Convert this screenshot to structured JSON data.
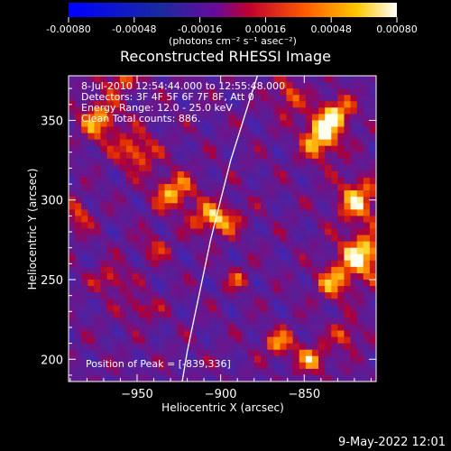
{
  "chart_data": {
    "type": "heatmap",
    "title": "Reconstructed RHESSI Image",
    "xlabel": "Heliocentric X (arcsec)",
    "ylabel": "Heliocentric Y (arcsec)",
    "x_ticks": [
      -950,
      -900,
      -850
    ],
    "y_ticks": [
      200,
      250,
      300,
      350
    ],
    "xlim": [
      -991,
      -807
    ],
    "ylim": [
      186,
      378
    ],
    "colorbar": {
      "ticks": [
        "-0.00080",
        "-0.00048",
        "-0.00016",
        "0.00016",
        "0.00048",
        "0.00080"
      ],
      "range": [
        -0.0008,
        0.0008
      ],
      "unit_label": "(photons cm⁻² s⁻¹ asec⁻²)"
    },
    "annotations": {
      "time": "8-Jul-2010 12:54:44.000 to 12:55:48.000",
      "detectors": "Detectors: 3F 4F 5F 6F 7F 8F, Att 0",
      "energy": "Energy Range: 12.0 - 25.0 keV",
      "clean": "Clean     Total counts: 886.",
      "peak": "Position of Peak = [-839,336]"
    },
    "peak_position": [
      -839,
      336
    ],
    "blobs": [
      {
        "x": -840,
        "y": 340,
        "sx": 8,
        "sy": 10,
        "a": 1.0
      },
      {
        "x": -830,
        "y": 355,
        "sx": 7,
        "sy": 7,
        "a": 0.75
      },
      {
        "x": -860,
        "y": 365,
        "sx": 6,
        "sy": 8,
        "a": 0.6
      },
      {
        "x": -815,
        "y": 265,
        "sx": 10,
        "sy": 10,
        "a": 0.95
      },
      {
        "x": -818,
        "y": 300,
        "sx": 9,
        "sy": 10,
        "a": 0.8
      },
      {
        "x": -832,
        "y": 248,
        "sx": 8,
        "sy": 8,
        "a": 0.65
      },
      {
        "x": -903,
        "y": 288,
        "sx": 10,
        "sy": 7,
        "a": 0.85
      },
      {
        "x": -928,
        "y": 305,
        "sx": 9,
        "sy": 8,
        "a": 0.75
      },
      {
        "x": -950,
        "y": 330,
        "sx": 8,
        "sy": 8,
        "a": 0.7
      },
      {
        "x": -972,
        "y": 350,
        "sx": 9,
        "sy": 10,
        "a": 0.7
      },
      {
        "x": -940,
        "y": 270,
        "sx": 6,
        "sy": 6,
        "a": 0.45
      },
      {
        "x": -965,
        "y": 250,
        "sx": 7,
        "sy": 6,
        "a": 0.55
      },
      {
        "x": -985,
        "y": 290,
        "sx": 5,
        "sy": 7,
        "a": 0.55
      },
      {
        "x": -948,
        "y": 232,
        "sx": 7,
        "sy": 5,
        "a": 0.5
      },
      {
        "x": -865,
        "y": 210,
        "sx": 7,
        "sy": 6,
        "a": 0.65
      },
      {
        "x": -845,
        "y": 200,
        "sx": 7,
        "sy": 6,
        "a": 0.7
      },
      {
        "x": -825,
        "y": 215,
        "sx": 6,
        "sy": 6,
        "a": 0.6
      },
      {
        "x": -890,
        "y": 250,
        "sx": 5,
        "sy": 5,
        "a": 0.45
      },
      {
        "x": -960,
        "y": 375,
        "sx": 8,
        "sy": 5,
        "a": 0.55
      }
    ],
    "limb_arc": [
      [
        -878,
        378
      ],
      [
        -882,
        365
      ],
      [
        -888,
        345
      ],
      [
        -894,
        325
      ],
      [
        -900,
        300
      ],
      [
        -906,
        275
      ],
      [
        -911,
        250
      ],
      [
        -916,
        225
      ],
      [
        -920,
        205
      ],
      [
        -923,
        186
      ]
    ]
  },
  "footer_date": "9-May-2022 12:01"
}
